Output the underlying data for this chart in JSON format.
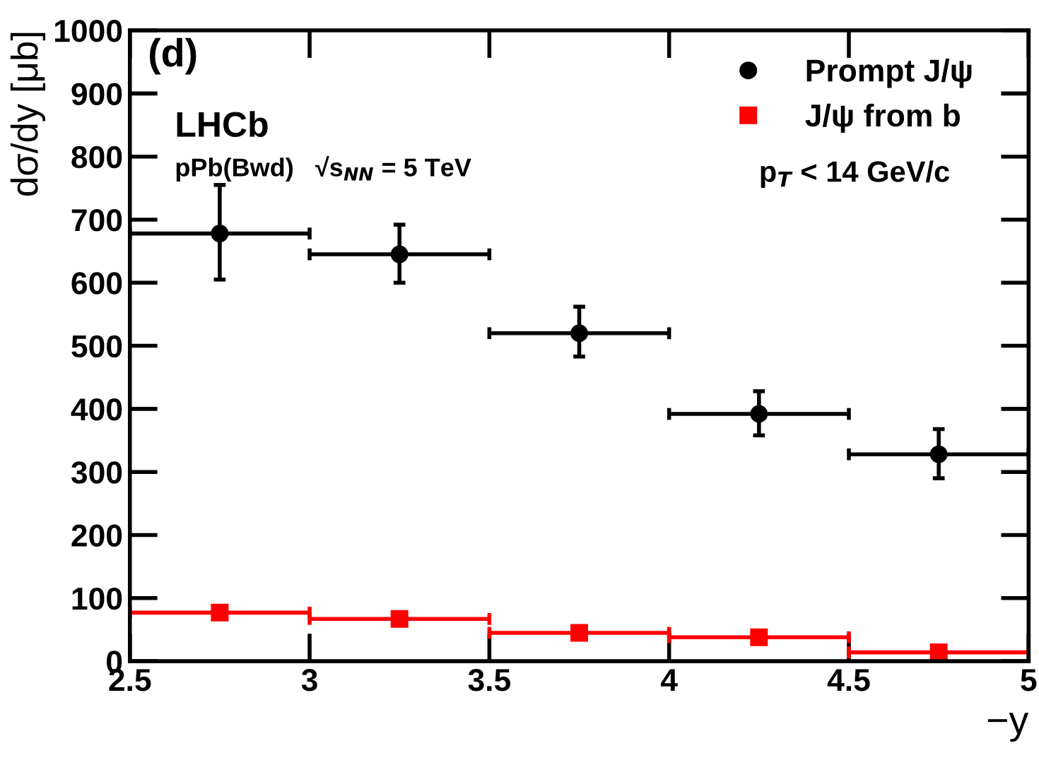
{
  "chart_data": {
    "type": "scatter",
    "xlabel": "−y",
    "ylabel": "dσ/dy [μb]",
    "x": [
      2.75,
      3.25,
      3.75,
      4.25,
      4.75
    ],
    "series": [
      {
        "name": "Prompt J/ψ",
        "color": "#000000",
        "marker": "circle",
        "values": [
          678,
          645,
          520,
          392,
          328
        ],
        "errors": [
          [
            605,
            755
          ],
          [
            600,
            692
          ],
          [
            483,
            562
          ],
          [
            358,
            428
          ],
          [
            290,
            368
          ]
        ],
        "xerrors": [
          0.25,
          0.25,
          0.25,
          0.25,
          0.25
        ]
      },
      {
        "name": "J/ψ from b",
        "color": "#ff0000",
        "marker": "square",
        "values": [
          77,
          67,
          45,
          38,
          14
        ],
        "xerrors": [
          0.25,
          0.25,
          0.25,
          0.25,
          0.25
        ]
      }
    ],
    "xlim": [
      2.5,
      5
    ],
    "xticks": [
      2.5,
      3,
      3.5,
      4,
      4.5,
      5
    ],
    "ylim": [
      0,
      1000
    ],
    "yticks": [
      0,
      100,
      200,
      300,
      400,
      500,
      600,
      700,
      800,
      900,
      1000
    ],
    "grid": false,
    "legend": "top right",
    "annotations": [
      "(d)",
      "LHCb",
      "pPb(Bwd)   √s$_{NN}$ = 5 TeV",
      "p$_{T}$ < 14 GeV/c"
    ]
  }
}
